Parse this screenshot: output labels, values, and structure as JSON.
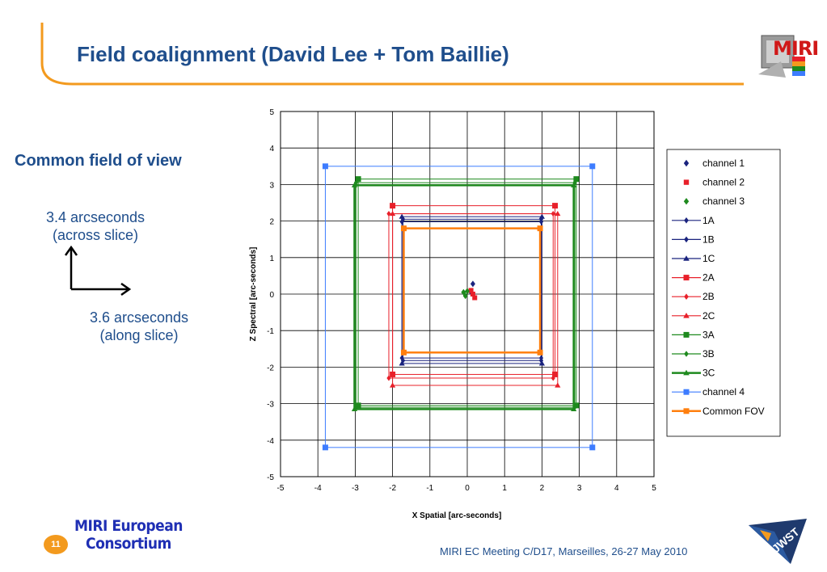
{
  "slide": {
    "title": "Field coalignment (David Lee + Tom Baillie)",
    "side_heading": "Common field of view",
    "note_across_line1": "3.4 arcseconds",
    "note_across_line2": "(across slice)",
    "note_along_line1": "3.6 arcseconds",
    "note_along_line2": "(along slice)",
    "slide_number": "11",
    "org_line1": "MIRI European",
    "org_line2": "Consortium",
    "meeting": "MIRI EC Meeting C/D17, Marseilles, 26-27 May 2010",
    "logo_miri_text": "MIRI",
    "logo_jwst_text": "JWST"
  },
  "colors": {
    "title": "#1f4e8c",
    "accent_orange": "#f39a1e",
    "ch1": "#1a237e",
    "ch2": "#e8202a",
    "ch3": "#1e8a1e",
    "ch4": "#3d7cff",
    "common": "#ff7f0e"
  },
  "chart_data": {
    "type": "scatter",
    "xlabel": "X Spatial [arc-seconds]",
    "ylabel": "Z Spectral [arc-seconds]",
    "xlim": [
      -5,
      5
    ],
    "ylim": [
      -5,
      5
    ],
    "xticks": [
      "-5",
      "-4",
      "-3",
      "-2",
      "-1",
      "0",
      "1",
      "2",
      "3",
      "4",
      "5"
    ],
    "yticks": [
      "-5",
      "-4",
      "-3",
      "-2",
      "-1",
      "0",
      "1",
      "2",
      "3",
      "4",
      "5"
    ],
    "grid": true,
    "legend_position": "right",
    "points": [
      {
        "name": "channel 1",
        "marker": "diamond",
        "color": "#1a237e",
        "x": [
          0.15,
          0.1
        ],
        "y": [
          0.28,
          0.05
        ]
      },
      {
        "name": "channel 2",
        "marker": "square",
        "color": "#e8202a",
        "x": [
          0.1,
          0.2,
          0.15
        ],
        "y": [
          0.1,
          -0.1,
          0.0
        ]
      },
      {
        "name": "channel 3",
        "marker": "diamond",
        "color": "#1e8a1e",
        "x": [
          -0.1,
          -0.05,
          0.0
        ],
        "y": [
          0.05,
          -0.05,
          0.08
        ]
      }
    ],
    "rectangles": [
      {
        "name": "1A",
        "color": "#1a237e",
        "marker": "diamond",
        "x0": -1.75,
        "x1": 1.98,
        "y0": -1.75,
        "y1": 1.98,
        "width": 1
      },
      {
        "name": "1B",
        "color": "#1a237e",
        "marker": "diamond",
        "x0": -1.72,
        "x1": 1.98,
        "y0": -1.82,
        "y1": 2.05,
        "width": 1
      },
      {
        "name": "1C",
        "color": "#1a237e",
        "marker": "triangle",
        "x0": -1.75,
        "x1": 2.0,
        "y0": -1.9,
        "y1": 2.12,
        "width": 1
      },
      {
        "name": "2A",
        "color": "#e8202a",
        "marker": "square",
        "x0": -2.0,
        "x1": 2.35,
        "y0": -2.2,
        "y1": 2.42,
        "width": 1
      },
      {
        "name": "2B",
        "color": "#e8202a",
        "marker": "diamond",
        "x0": -2.1,
        "x1": 2.3,
        "y0": -2.3,
        "y1": 2.2,
        "width": 1
      },
      {
        "name": "2C",
        "color": "#e8202a",
        "marker": "triangle",
        "x0": -2.0,
        "x1": 2.42,
        "y0": -2.5,
        "y1": 2.2,
        "width": 1
      },
      {
        "name": "3A",
        "color": "#1e8a1e",
        "marker": "square",
        "x0": -2.92,
        "x1": 2.92,
        "y0": -3.05,
        "y1": 3.15,
        "width": 1
      },
      {
        "name": "3B",
        "color": "#1e8a1e",
        "marker": "diamond",
        "x0": -2.98,
        "x1": 2.88,
        "y0": -3.1,
        "y1": 3.05,
        "width": 1
      },
      {
        "name": "3C",
        "color": "#1e8a1e",
        "marker": "triangle",
        "x0": -3.02,
        "x1": 2.85,
        "y0": -3.15,
        "y1": 2.98,
        "width": 2.5
      },
      {
        "name": "channel 4",
        "color": "#3d7cff",
        "marker": "square",
        "x0": -3.8,
        "x1": 3.35,
        "y0": -4.2,
        "y1": 3.5,
        "width": 1
      },
      {
        "name": "Common FOV",
        "color": "#ff7f0e",
        "marker": "square",
        "x0": -1.7,
        "x1": 1.95,
        "y0": -1.6,
        "y1": 1.8,
        "width": 2.5
      }
    ]
  }
}
